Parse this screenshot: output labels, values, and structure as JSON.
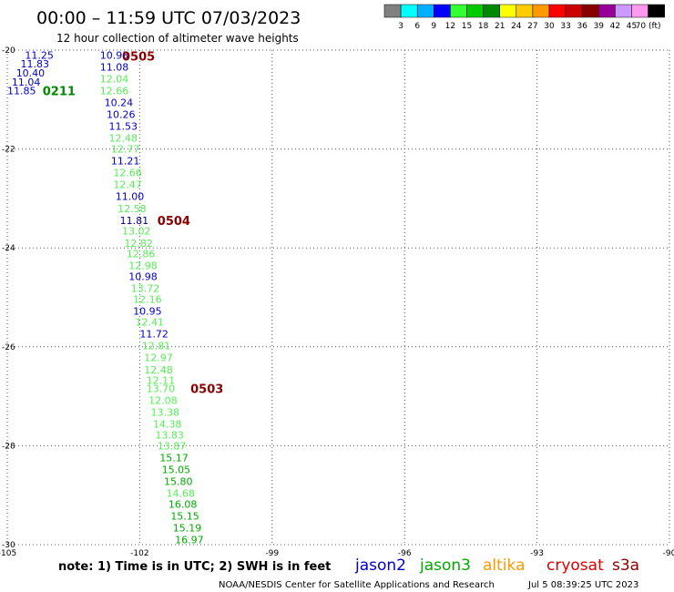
{
  "header": {
    "title": "00:00 – 11:59 UTC 07/03/2023",
    "subtitle": "12 hour collection of altimeter wave heights"
  },
  "legend": {
    "colors": [
      "#808080",
      "#00ffff",
      "#00b0ff",
      "#0000ff",
      "#33ff33",
      "#00cc00",
      "#008800",
      "#ffff00",
      "#ffcc00",
      "#ff9900",
      "#ff0000",
      "#cc0000",
      "#880000",
      "#990099",
      "#cc99ff",
      "#ff99ee",
      "#000000"
    ],
    "labels": [
      "3",
      "6",
      "9",
      "12",
      "15",
      "18",
      "21",
      "24",
      "27",
      "30",
      "33",
      "36",
      "39",
      "42",
      "45",
      "70 (ft)"
    ]
  },
  "footer": {
    "note": "note: 1) Time is in UTC; 2) SWH is in feet",
    "credit": "NOAA/NESDIS Center for Satellite Applications and Research",
    "timestamp": "Jul  5 08:39:25 UTC 2023",
    "satellites": [
      {
        "name": "jason2",
        "color": "#0000cc"
      },
      {
        "name": "jason3",
        "color": "#00aa00"
      },
      {
        "name": "altika",
        "color": "#ff9900"
      },
      {
        "name": "cryosat",
        "color": "#dd0000"
      },
      {
        "name": "s3a",
        "color": "#880000"
      }
    ]
  },
  "chart_data": {
    "type": "scatter",
    "title": "12 hour collection of altimeter wave heights",
    "xlim": [
      -105,
      -90
    ],
    "ylim": [
      -30,
      -20
    ],
    "x_ticks": [
      "-105",
      "-102",
      "-99",
      "-96",
      "-93",
      "-90"
    ],
    "y_ticks": [
      "-20",
      "-22",
      "-24",
      "-26",
      "-28",
      "-30"
    ],
    "grid": true,
    "unit": "ft",
    "points": [
      {
        "lon": -104.6,
        "lat": -20.1,
        "swh": "11.25",
        "color": "#0000cc"
      },
      {
        "lon": -104.7,
        "lat": -20.28,
        "swh": "11.83",
        "color": "#0000cc"
      },
      {
        "lon": -104.8,
        "lat": -20.46,
        "swh": "10.40",
        "color": "#0000cc"
      },
      {
        "lon": -104.9,
        "lat": -20.64,
        "swh": "11.04",
        "color": "#0000cc"
      },
      {
        "lon": -105.0,
        "lat": -20.82,
        "swh": "11.85",
        "color": "#0000cc"
      },
      {
        "lon": -102.9,
        "lat": -20.1,
        "swh": "10.93",
        "color": "#0000cc"
      },
      {
        "lon": -102.9,
        "lat": -20.34,
        "swh": "11.08",
        "color": "#0000cc"
      },
      {
        "lon": -102.9,
        "lat": -20.58,
        "swh": "12.04",
        "color": "#55ee55"
      },
      {
        "lon": -102.9,
        "lat": -20.82,
        "swh": "12.66",
        "color": "#55ee55"
      },
      {
        "lon": -102.8,
        "lat": -21.06,
        "swh": "10.24",
        "color": "#0000cc"
      },
      {
        "lon": -102.75,
        "lat": -21.3,
        "swh": "10.26",
        "color": "#0000cc"
      },
      {
        "lon": -102.7,
        "lat": -21.54,
        "swh": "11.53",
        "color": "#0000cc"
      },
      {
        "lon": -102.7,
        "lat": -21.78,
        "swh": "12.48",
        "color": "#55ee55"
      },
      {
        "lon": -102.65,
        "lat": -22.0,
        "swh": "12.77",
        "color": "#55ee55"
      },
      {
        "lon": -102.65,
        "lat": -22.24,
        "swh": "11.21",
        "color": "#0000cc"
      },
      {
        "lon": -102.6,
        "lat": -22.48,
        "swh": "12.66",
        "color": "#55ee55"
      },
      {
        "lon": -102.6,
        "lat": -22.72,
        "swh": "12.47",
        "color": "#55ee55"
      },
      {
        "lon": -102.55,
        "lat": -22.96,
        "swh": "11.00",
        "color": "#0000cc"
      },
      {
        "lon": -102.5,
        "lat": -23.2,
        "swh": "12.58",
        "color": "#55ee55"
      },
      {
        "lon": -102.45,
        "lat": -23.44,
        "swh": "11.81",
        "color": "#000088"
      },
      {
        "lon": -102.4,
        "lat": -23.66,
        "swh": "13.02",
        "color": "#55ee55"
      },
      {
        "lon": -102.35,
        "lat": -23.9,
        "swh": "12.82",
        "color": "#55ee55"
      },
      {
        "lon": -102.3,
        "lat": -24.12,
        "swh": "12.86",
        "color": "#55ee55"
      },
      {
        "lon": -102.25,
        "lat": -24.36,
        "swh": "12.98",
        "color": "#55ee55"
      },
      {
        "lon": -102.25,
        "lat": -24.58,
        "swh": "10.98",
        "color": "#0000cc"
      },
      {
        "lon": -102.2,
        "lat": -24.82,
        "swh": "13.72",
        "color": "#55ee55"
      },
      {
        "lon": -102.15,
        "lat": -25.04,
        "swh": "12.16",
        "color": "#55ee55"
      },
      {
        "lon": -102.15,
        "lat": -25.28,
        "swh": "10.95",
        "color": "#0000cc"
      },
      {
        "lon": -102.1,
        "lat": -25.5,
        "swh": "12.41",
        "color": "#55ee55"
      },
      {
        "lon": -102.0,
        "lat": -25.74,
        "swh": "11.72",
        "color": "#0000cc"
      },
      {
        "lon": -101.95,
        "lat": -25.98,
        "swh": "12.81",
        "color": "#55ee55"
      },
      {
        "lon": -101.9,
        "lat": -26.22,
        "swh": "12.97",
        "color": "#55ee55"
      },
      {
        "lon": -101.9,
        "lat": -26.46,
        "swh": "12.48",
        "color": "#55ee55"
      },
      {
        "lon": -101.85,
        "lat": -26.68,
        "swh": "12.11",
        "color": "#55ee55"
      },
      {
        "lon": -101.85,
        "lat": -26.84,
        "swh": "13.70",
        "color": "#55ee55"
      },
      {
        "lon": -101.8,
        "lat": -27.08,
        "swh": "12.08",
        "color": "#55ee55"
      },
      {
        "lon": -101.75,
        "lat": -27.32,
        "swh": "13.38",
        "color": "#55ee55"
      },
      {
        "lon": -101.7,
        "lat": -27.56,
        "swh": "14.38",
        "color": "#55ee55"
      },
      {
        "lon": -101.65,
        "lat": -27.78,
        "swh": "13.83",
        "color": "#55ee55"
      },
      {
        "lon": -101.6,
        "lat": -28.0,
        "swh": "13.87",
        "color": "#55ee55"
      },
      {
        "lon": -101.55,
        "lat": -28.24,
        "swh": "15.17",
        "color": "#00aa00"
      },
      {
        "lon": -101.5,
        "lat": -28.48,
        "swh": "15.05",
        "color": "#00aa00"
      },
      {
        "lon": -101.45,
        "lat": -28.72,
        "swh": "15.80",
        "color": "#00aa00"
      },
      {
        "lon": -101.4,
        "lat": -28.96,
        "swh": "14.68",
        "color": "#55ee55"
      },
      {
        "lon": -101.35,
        "lat": -29.18,
        "swh": "16.08",
        "color": "#00aa00"
      },
      {
        "lon": -101.3,
        "lat": -29.42,
        "swh": "15.15",
        "color": "#00aa00"
      },
      {
        "lon": -101.25,
        "lat": -29.66,
        "swh": "15.19",
        "color": "#00aa00"
      },
      {
        "lon": -101.2,
        "lat": -29.9,
        "swh": "16.97",
        "color": "#00aa00"
      }
    ],
    "time_labels": [
      {
        "lon": -102.4,
        "lat": -20.12,
        "text": "0505",
        "color": "#880000"
      },
      {
        "lon": -104.2,
        "lat": -20.82,
        "text": "0211",
        "color": "#008800"
      },
      {
        "lon": -101.6,
        "lat": -23.44,
        "text": "0504",
        "color": "#880000"
      },
      {
        "lon": -100.85,
        "lat": -26.84,
        "text": "0503",
        "color": "#880000"
      }
    ]
  }
}
